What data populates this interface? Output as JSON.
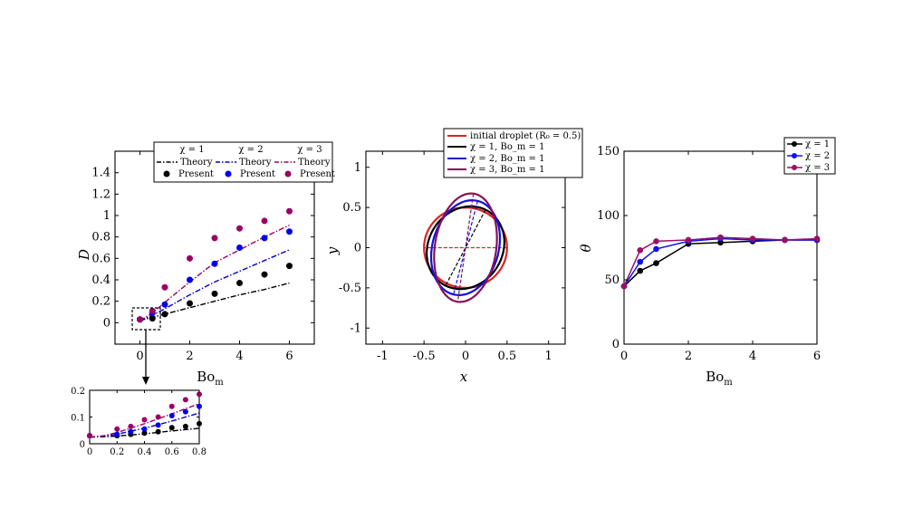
{
  "chart_data": [
    {
      "id": "panel_a",
      "type": "scatter",
      "xlabel": "Bo_m",
      "ylabel": "D",
      "xlim": [
        -1,
        7
      ],
      "ylim": [
        -0.2,
        1.6
      ],
      "xticks": [
        0,
        2,
        4,
        6
      ],
      "yticks": [
        0,
        0.2,
        0.4,
        0.6,
        0.8,
        1,
        1.2,
        1.4
      ],
      "xtick_labels": [
        "0",
        "2",
        "4",
        "6"
      ],
      "ytick_labels": [
        "0",
        "0.2",
        "0.4",
        "0.6",
        "0.8",
        "1",
        "1.2",
        "1.4"
      ],
      "legend": {
        "headers": [
          "χ = 1",
          "χ = 2",
          "χ = 3"
        ],
        "theory_label": "Theory",
        "present_label": "Present",
        "placement": "top"
      },
      "series": [
        {
          "name": "χ = 1 Theory",
          "kind": "line",
          "style": "dashdot",
          "color": "#000000",
          "x": [
            0,
            0.5,
            1,
            2,
            3,
            4,
            5,
            6
          ],
          "y": [
            0.02,
            0.05,
            0.08,
            0.14,
            0.2,
            0.26,
            0.31,
            0.37
          ]
        },
        {
          "name": "χ = 2 Theory",
          "kind": "line",
          "style": "dashdot",
          "color": "#0000cc",
          "x": [
            0,
            0.5,
            1,
            2,
            3,
            4,
            5,
            6
          ],
          "y": [
            0.02,
            0.07,
            0.13,
            0.26,
            0.38,
            0.48,
            0.58,
            0.68
          ]
        },
        {
          "name": "χ = 3 Theory",
          "kind": "line",
          "style": "dashdot",
          "color": "#990066",
          "x": [
            0,
            0.5,
            1,
            2,
            3,
            4,
            5,
            6
          ],
          "y": [
            0.02,
            0.09,
            0.19,
            0.38,
            0.56,
            0.68,
            0.8,
            0.91
          ]
        },
        {
          "name": "χ = 1 Present",
          "kind": "points",
          "color": "#000000",
          "x": [
            0,
            0.5,
            1,
            2,
            3,
            4,
            5,
            6
          ],
          "y": [
            0.03,
            0.04,
            0.08,
            0.18,
            0.27,
            0.37,
            0.45,
            0.53
          ]
        },
        {
          "name": "χ = 2 Present",
          "kind": "points",
          "color": "#0000ee",
          "x": [
            0,
            0.5,
            1,
            2,
            3,
            4,
            5,
            6
          ],
          "y": [
            0.03,
            0.09,
            0.17,
            0.4,
            0.55,
            0.7,
            0.79,
            0.85
          ]
        },
        {
          "name": "χ = 3 Present",
          "kind": "points",
          "color": "#990066",
          "x": [
            0,
            0.5,
            1,
            2,
            3,
            4,
            5,
            6
          ],
          "y": [
            0.03,
            0.11,
            0.33,
            0.6,
            0.79,
            0.88,
            0.95,
            1.04
          ]
        }
      ]
    },
    {
      "id": "panel_a_inset",
      "type": "scatter",
      "xlim": [
        0,
        0.8
      ],
      "ylim": [
        0,
        0.2
      ],
      "xticks": [
        0,
        0.2,
        0.4,
        0.6,
        0.8
      ],
      "yticks": [
        0,
        0.1,
        0.2
      ],
      "xtick_labels": [
        "0",
        "0.2",
        "0.4",
        "0.6",
        "0.8"
      ],
      "ytick_labels": [
        "0",
        "0.1",
        "0.2"
      ],
      "series": [
        {
          "name": "χ = 1 Theory",
          "kind": "line",
          "style": "dashdot",
          "color": "#000000",
          "x": [
            0,
            0.1,
            0.2,
            0.4,
            0.6,
            0.8
          ],
          "y": [
            0.025,
            0.026,
            0.029,
            0.037,
            0.048,
            0.058
          ]
        },
        {
          "name": "χ = 2 Theory",
          "kind": "line",
          "style": "dashdot",
          "color": "#0000cc",
          "x": [
            0,
            0.1,
            0.2,
            0.4,
            0.6,
            0.8
          ],
          "y": [
            0.025,
            0.028,
            0.036,
            0.058,
            0.085,
            0.115
          ]
        },
        {
          "name": "χ = 3 Theory",
          "kind": "line",
          "style": "dashdot",
          "color": "#990066",
          "x": [
            0,
            0.1,
            0.2,
            0.4,
            0.6,
            0.8
          ],
          "y": [
            0.025,
            0.03,
            0.042,
            0.075,
            0.112,
            0.15
          ]
        },
        {
          "name": "χ = 1 Present",
          "kind": "points",
          "color": "#000000",
          "x": [
            0,
            0.2,
            0.3,
            0.4,
            0.5,
            0.6,
            0.7,
            0.8
          ],
          "y": [
            0.03,
            0.03,
            0.035,
            0.04,
            0.045,
            0.06,
            0.065,
            0.075
          ]
        },
        {
          "name": "χ = 2 Present",
          "kind": "points",
          "color": "#0000ee",
          "x": [
            0,
            0.2,
            0.3,
            0.4,
            0.5,
            0.6,
            0.7,
            0.8
          ],
          "y": [
            0.03,
            0.035,
            0.045,
            0.055,
            0.07,
            0.105,
            0.12,
            0.14
          ]
        },
        {
          "name": "χ = 3 Present",
          "kind": "points",
          "color": "#990066",
          "x": [
            0,
            0.2,
            0.3,
            0.4,
            0.5,
            0.6,
            0.7,
            0.8
          ],
          "y": [
            0.03,
            0.055,
            0.065,
            0.09,
            0.1,
            0.14,
            0.165,
            0.185
          ]
        }
      ]
    },
    {
      "id": "panel_b",
      "type": "line",
      "xlabel": "x",
      "ylabel": "y",
      "xlim": [
        -1.2,
        1.2
      ],
      "ylim": [
        -1.2,
        1.2
      ],
      "xticks": [
        -1,
        -0.5,
        0,
        0.5,
        1
      ],
      "yticks": [
        -1,
        -0.5,
        0,
        0.5,
        1
      ],
      "xtick_labels": [
        "-1",
        "-0.5",
        "0",
        "0.5",
        "1"
      ],
      "ytick_labels": [
        "-1",
        "-0.5",
        "0",
        "0.5",
        "1"
      ],
      "legend_entries": [
        "initial droplet (R₀ = 0.5)",
        "χ = 1, Bo_m = 1",
        "χ = 2, Bo_m = 1",
        "χ = 3, Bo_m = 1"
      ],
      "legend_placement": "top",
      "shapes": [
        {
          "name": "initial droplet",
          "color": "#dd2222",
          "a": 0.5,
          "b": 0.5,
          "angle_deg": 0
        },
        {
          "name": "χ = 1, Bo_m = 1",
          "color": "#000000",
          "a": 0.53,
          "b": 0.45,
          "angle_deg": 63
        },
        {
          "name": "χ = 2, Bo_m = 1",
          "color": "#1010dd",
          "a": 0.6,
          "b": 0.4,
          "angle_deg": 76
        },
        {
          "name": "χ = 3, Bo_m = 1",
          "color": "#881155",
          "a": 0.68,
          "b": 0.37,
          "angle_deg": 82
        }
      ]
    },
    {
      "id": "panel_c",
      "type": "line",
      "xlabel": "Bo_m",
      "ylabel": "θ",
      "xlim": [
        0,
        6
      ],
      "ylim": [
        0,
        150
      ],
      "xticks": [
        0,
        2,
        4,
        6
      ],
      "yticks": [
        0,
        50,
        100,
        150
      ],
      "xtick_labels": [
        "0",
        "2",
        "4",
        "6"
      ],
      "ytick_labels": [
        "0",
        "50",
        "100",
        "150"
      ],
      "legend_placement": "top-right",
      "series": [
        {
          "name": "χ = 1",
          "color": "#000000",
          "x": [
            0,
            0.5,
            1,
            2,
            3,
            4,
            5,
            6
          ],
          "y": [
            45,
            57,
            63,
            78,
            79,
            80,
            81,
            81
          ]
        },
        {
          "name": "χ = 2",
          "color": "#1010ee",
          "x": [
            0,
            0.5,
            1,
            2,
            3,
            4,
            5,
            6
          ],
          "y": [
            45,
            64,
            74,
            80,
            82,
            81,
            81,
            81
          ]
        },
        {
          "name": "χ = 3",
          "color": "#991166",
          "x": [
            0,
            0.5,
            1,
            2,
            3,
            4,
            5,
            6
          ],
          "y": [
            45,
            73,
            80,
            81,
            83,
            82,
            81,
            82
          ]
        }
      ]
    }
  ]
}
